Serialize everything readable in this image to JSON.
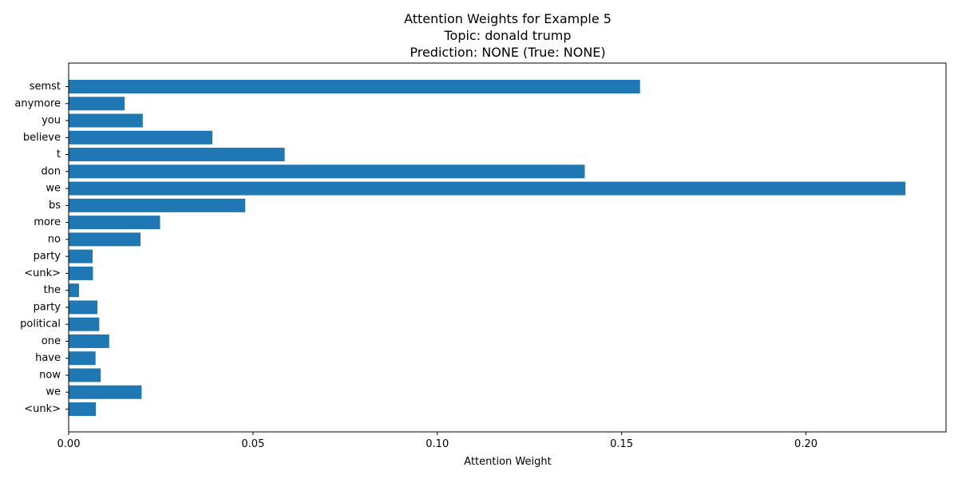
{
  "chart_data": {
    "type": "bar",
    "orientation": "horizontal",
    "title_lines": [
      "Attention Weights for Example 5",
      "Topic: donald trump",
      "Prediction: NONE (True: NONE)"
    ],
    "xlabel": "Attention Weight",
    "ylabel": "",
    "xlim": [
      0,
      0.238
    ],
    "xticks": [
      0.0,
      0.05,
      0.1,
      0.15,
      0.2
    ],
    "xtick_labels": [
      "0.00",
      "0.05",
      "0.10",
      "0.15",
      "0.20"
    ],
    "grid": false,
    "bar_color": "#1f77b4",
    "categories": [
      "semst",
      "anymore",
      "you",
      "believe",
      "t",
      "don",
      "we",
      "bs",
      "more",
      "no",
      "party",
      "<unk>",
      "the",
      "party",
      "political",
      "one",
      "have",
      "now",
      "we",
      "<unk>"
    ],
    "values": [
      0.155,
      0.0152,
      0.0201,
      0.039,
      0.0586,
      0.14,
      0.227,
      0.0479,
      0.0248,
      0.0195,
      0.0065,
      0.0066,
      0.0028,
      0.0078,
      0.0083,
      0.011,
      0.0073,
      0.0087,
      0.0198,
      0.0074
    ]
  }
}
